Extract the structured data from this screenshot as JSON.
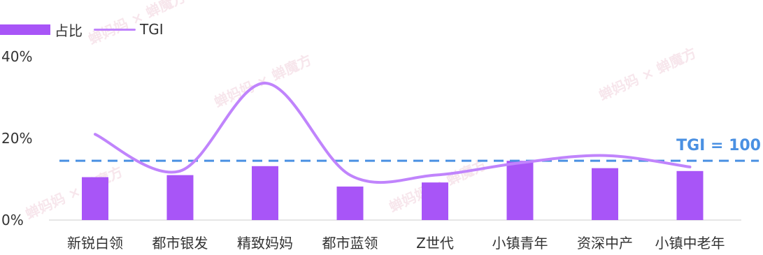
{
  "chart_data": {
    "type": "bar",
    "categories": [
      "新锐白领",
      "都市银发",
      "精致妈妈",
      "都市蓝领",
      "Z世代",
      "小镇青年",
      "资深中产",
      "小镇中老年"
    ],
    "series": [
      {
        "name": "占比",
        "type": "bar",
        "values": [
          10.5,
          11,
          13.2,
          8.2,
          9.2,
          14.5,
          12.7,
          12
        ]
      },
      {
        "name": "TGI",
        "type": "line",
        "values": [
          21,
          12,
          33.5,
          11,
          11,
          14,
          15.8,
          13
        ]
      }
    ],
    "yticks": [
      "0%",
      "20%",
      "40%"
    ],
    "ylim": [
      0,
      40
    ],
    "reference_line": {
      "label": "TGI = 100",
      "value": 14.5
    },
    "legend_position": "top-left",
    "grid": false,
    "colors": {
      "bar": "#a855f7",
      "line": "#c084fc",
      "reference": "#4a90e2",
      "axis": "#dddddd",
      "text": "#333333"
    }
  },
  "watermark": "蝉妈妈 × 蝉魔方"
}
